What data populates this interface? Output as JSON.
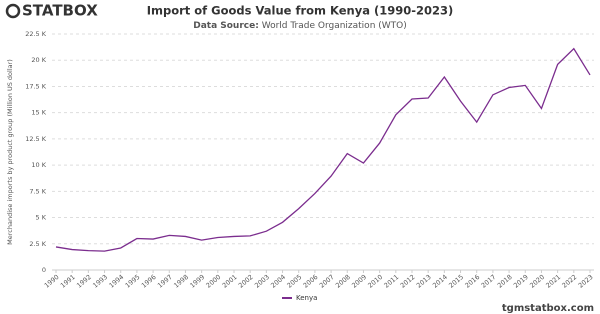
{
  "brand": "STATBOX",
  "footer": "tgmstatbox.com",
  "chart_data": {
    "type": "line",
    "title": "Import of Goods Value from Kenya (1990-2023)",
    "subtitle_label": "Data Source:",
    "subtitle": "World Trade Organization (WTO)",
    "y_label": "Merchandise imports by product group (Million US dollar)",
    "categories": [
      "1990",
      "1991",
      "1992",
      "1993",
      "1994",
      "1995",
      "1996",
      "1997",
      "1998",
      "1999",
      "2000",
      "2001",
      "2002",
      "2003",
      "2004",
      "2005",
      "2006",
      "2007",
      "2008",
      "2009",
      "2010",
      "2011",
      "2012",
      "2013",
      "2014",
      "2015",
      "2016",
      "2017",
      "2018",
      "2019",
      "2020",
      "2021",
      "2022",
      "2023"
    ],
    "series": [
      {
        "name": "Kenya",
        "color": "#7b2d8e",
        "values": [
          2200,
          1950,
          1850,
          1800,
          2100,
          3000,
          2950,
          3300,
          3200,
          2850,
          3100,
          3200,
          3250,
          3700,
          4550,
          5850,
          7300,
          8950,
          11100,
          10200,
          12100,
          14800,
          16300,
          16400,
          18400,
          16100,
          14100,
          16700,
          17400,
          17600,
          15400,
          19600,
          21100,
          18600
        ]
      }
    ],
    "ylim": [
      0,
      22500
    ],
    "yticks": [
      0,
      {
        "value": 2500,
        "label": "2.5 K"
      },
      {
        "value": 5000,
        "label": "5 K"
      },
      {
        "value": 7500,
        "label": "7.5 K"
      },
      {
        "value": 10000,
        "label": "10 K"
      },
      {
        "value": 12500,
        "label": "12.5 K"
      },
      {
        "value": 15000,
        "label": "15 K"
      },
      {
        "value": 17500,
        "label": "17.5 K"
      },
      {
        "value": 20000,
        "label": "20 K"
      },
      {
        "value": 22500,
        "label": "22.5 K"
      }
    ],
    "grid": true,
    "legend": "bottom"
  }
}
